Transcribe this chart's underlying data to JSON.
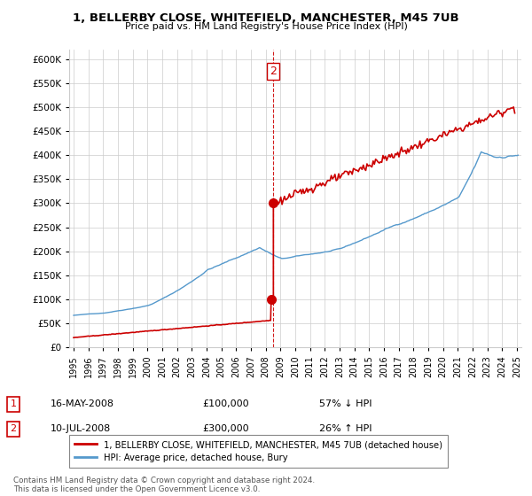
{
  "title": "1, BELLERBY CLOSE, WHITEFIELD, MANCHESTER, M45 7UB",
  "subtitle": "Price paid vs. HM Land Registry's House Price Index (HPI)",
  "legend_label_red": "1, BELLERBY CLOSE, WHITEFIELD, MANCHESTER, M45 7UB (detached house)",
  "legend_label_blue": "HPI: Average price, detached house, Bury",
  "table_rows": [
    {
      "num": "1",
      "date": "16-MAY-2008",
      "price": "£100,000",
      "hpi": "57% ↓ HPI"
    },
    {
      "num": "2",
      "date": "10-JUL-2008",
      "price": "£300,000",
      "hpi": "26% ↑ HPI"
    }
  ],
  "footnote": "Contains HM Land Registry data © Crown copyright and database right 2024.\nThis data is licensed under the Open Government Licence v3.0.",
  "transaction1_date": 2008.37,
  "transaction1_price": 100000,
  "transaction2_date": 2008.52,
  "transaction2_price": 300000,
  "ylim": [
    0,
    620000
  ],
  "yticks": [
    0,
    50000,
    100000,
    150000,
    200000,
    250000,
    300000,
    350000,
    400000,
    450000,
    500000,
    550000,
    600000
  ],
  "red_color": "#cc0000",
  "blue_color": "#5599cc",
  "background_color": "#ffffff",
  "grid_color": "#cccccc",
  "xlim_left": 1994.7,
  "xlim_right": 2025.3
}
